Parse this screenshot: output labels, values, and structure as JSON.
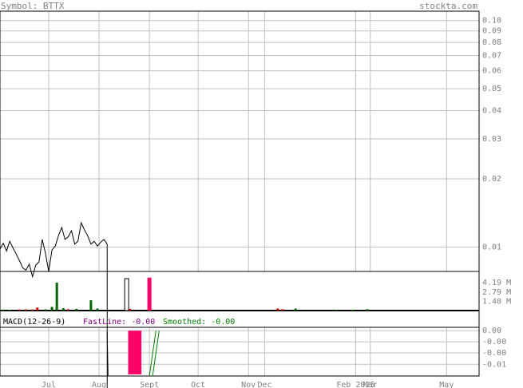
{
  "header": {
    "symbol_label": "Symbol: BTTX",
    "site": "stockta.com"
  },
  "colors": {
    "price_line": "#000000",
    "volume_up": "#006400",
    "volume_down": "#cc0000",
    "volume_highlight": "#ff0066",
    "grid": "#c0c0c0",
    "text": "#808080",
    "macd_label": "#000000",
    "fastline": "#800080",
    "smoothed": "#008000"
  },
  "chart_data": [
    {
      "type": "line",
      "title": "",
      "y_scale": "log",
      "y_ticks": [
        "0.10",
        "0.09",
        "0.08",
        "0.07",
        "0.06",
        "0.05",
        "0.04",
        "0.03",
        "0.02",
        "0.01"
      ],
      "y_tick_values": [
        0.1,
        0.09,
        0.08,
        0.07,
        0.06,
        0.05,
        0.04,
        0.03,
        0.02,
        0.01
      ],
      "ylim": [
        0.0078,
        0.11
      ],
      "x_ticks": [
        "Jul",
        "Aug",
        "Sept",
        "Oct",
        "Nov",
        "Dec",
        "Feb 2025",
        "Mar",
        "May"
      ],
      "x_tick_days": [
        30,
        61,
        92,
        122,
        153,
        163,
        219,
        228,
        275
      ],
      "xlim": [
        0,
        295
      ],
      "grid": true,
      "series": [
        {
          "values_x": [
            0,
            2,
            4,
            6,
            8,
            10,
            12,
            14,
            16,
            18,
            20,
            22,
            24,
            26,
            28,
            30,
            32,
            34,
            36,
            38,
            40,
            42,
            44,
            46,
            48,
            50,
            52,
            54,
            56,
            58,
            60,
            62,
            64,
            66
          ],
          "values_y": [
            0.0098,
            0.0104,
            0.0096,
            0.0106,
            0.0099,
            0.0093,
            0.0087,
            0.0081,
            0.0079,
            0.0084,
            0.0074,
            0.0083,
            0.0086,
            0.0108,
            0.0094,
            0.0078,
            0.0097,
            0.0101,
            0.0112,
            0.0122,
            0.0108,
            0.0111,
            0.0118,
            0.0103,
            0.0106,
            0.0128,
            0.0119,
            0.0112,
            0.0103,
            0.0106,
            0.0101,
            0.0105,
            0.0108,
            0.0103
          ]
        }
      ]
    },
    {
      "type": "bar",
      "title": "",
      "y_ticks": [
        "4.19 M",
        "2.79 M",
        "1.40 M"
      ],
      "y_tick_values": [
        4.19,
        2.79,
        1.4
      ],
      "ylim": [
        0,
        5.4
      ],
      "unit": "M",
      "bars": [
        {
          "day": 2,
          "value": 0.15,
          "kind": "up"
        },
        {
          "day": 6,
          "value": 0.12,
          "kind": "up"
        },
        {
          "day": 12,
          "value": 0.15,
          "kind": "down"
        },
        {
          "day": 16,
          "value": 0.18,
          "kind": "down"
        },
        {
          "day": 20,
          "value": 0.15,
          "kind": "down"
        },
        {
          "day": 23,
          "value": 0.45,
          "kind": "down"
        },
        {
          "day": 28,
          "value": 0.18,
          "kind": "up"
        },
        {
          "day": 32,
          "value": 0.55,
          "kind": "up"
        },
        {
          "day": 35,
          "value": 4.19,
          "kind": "up"
        },
        {
          "day": 39,
          "value": 0.35,
          "kind": "up"
        },
        {
          "day": 42,
          "value": 0.2,
          "kind": "down"
        },
        {
          "day": 47,
          "value": 0.25,
          "kind": "up"
        },
        {
          "day": 56,
          "value": 1.55,
          "kind": "up"
        },
        {
          "day": 60,
          "value": 0.3,
          "kind": "up"
        },
        {
          "day": 78,
          "value": 4.8,
          "kind": "hollow"
        },
        {
          "day": 80,
          "value": 0.25,
          "kind": "down"
        },
        {
          "day": 92,
          "value": 4.95,
          "kind": "highlight"
        },
        {
          "day": 171,
          "value": 0.3,
          "kind": "down"
        },
        {
          "day": 174,
          "value": 0.2,
          "kind": "down"
        },
        {
          "day": 182,
          "value": 0.3,
          "kind": "up"
        },
        {
          "day": 207,
          "value": 0.12,
          "kind": "up"
        },
        {
          "day": 217,
          "value": 0.12,
          "kind": "up"
        },
        {
          "day": 226,
          "value": 0.2,
          "kind": "up"
        }
      ]
    },
    {
      "type": "bar",
      "title": "",
      "label": "MACD(12-26-9)",
      "fastline_label": "FastLine: -0.00",
      "smoothed_label": "Smoothed: -0.00",
      "y_ticks": [
        "0.00",
        "-0.00",
        "-0.00",
        "-0.01"
      ],
      "y_tick_values": [
        0.0,
        -0.0033,
        -0.0066,
        -0.01
      ],
      "ylim": [
        -0.0135,
        0.001
      ],
      "histogram": [
        {
          "day": 80,
          "value": -0.013
        },
        {
          "day": 82,
          "value": -0.013
        },
        {
          "day": 84,
          "value": -0.013
        },
        {
          "day": 86,
          "value": -0.013
        }
      ],
      "fastline": [
        {
          "day": 66,
          "value": -0.0005
        },
        {
          "day": 66.5,
          "value": -0.0135
        }
      ],
      "smoothed": [
        {
          "day": 92,
          "value": -0.0135
        },
        {
          "day": 96,
          "value": 0.0
        }
      ]
    }
  ]
}
